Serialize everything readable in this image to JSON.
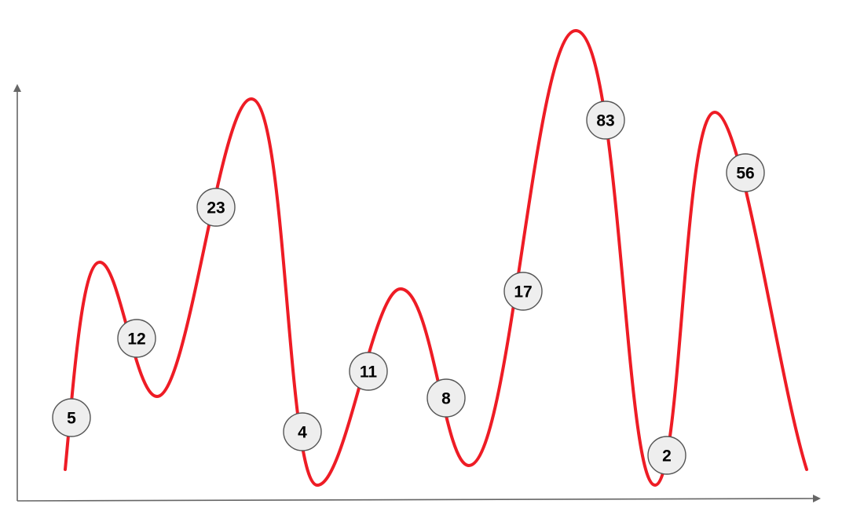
{
  "labels": [
    "5",
    "12",
    "23",
    "4",
    "11",
    "8",
    "17",
    "83",
    "2",
    "56"
  ],
  "colors": {
    "curve": "#ee1c25",
    "axis": "#666666",
    "bubble_fill": "#eeeeee",
    "bubble_stroke": "#555555",
    "text": "#000000"
  }
}
